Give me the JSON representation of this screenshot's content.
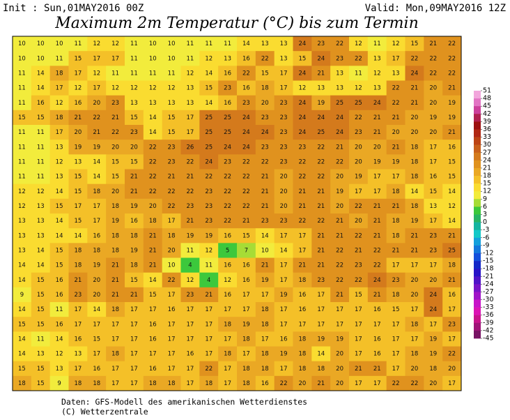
{
  "header": {
    "init": "Init : Sun,01MAY2016 00Z",
    "valid": "Valid: Mon,09MAY2016 12Z",
    "title": "Maximum 2m Temperatur (°C) bis zum Termin"
  },
  "footer": {
    "line1": "Daten: GFS-Modell des amerikanischen Wetterdienstes",
    "line2": "(C) Wetterzentrale"
  },
  "colorbar": {
    "levels": [
      51,
      48,
      45,
      42,
      39,
      36,
      33,
      30,
      27,
      24,
      21,
      18,
      15,
      12,
      9,
      6,
      3,
      0,
      -3,
      -6,
      -9,
      -12,
      -15,
      -18,
      -21,
      -24,
      -27,
      -30,
      -33,
      -36,
      -39,
      -42,
      -45
    ],
    "colors": [
      "#f2a6dc",
      "#e274c4",
      "#cc409c",
      "#b02050",
      "#9c1010",
      "#b02814",
      "#bc4414",
      "#c8601a",
      "#d47a1c",
      "#e0921e",
      "#eaa824",
      "#f4c028",
      "#fadc30",
      "#f2ec3c",
      "#a6dc36",
      "#3cc83c",
      "#28b464",
      "#14b4a0",
      "#14c8c8",
      "#14a0dc",
      "#1478dc",
      "#1450dc",
      "#1428c8",
      "#2814c8",
      "#5014c8",
      "#7814c8",
      "#a014c8",
      "#c814c8",
      "#dc14b4",
      "#c8148c",
      "#a01478",
      "#781464"
    ]
  },
  "grid": {
    "rows": [
      [
        10,
        10,
        10,
        11,
        12,
        12,
        11,
        10,
        10,
        11,
        11,
        11,
        14,
        13,
        13,
        24,
        23,
        22,
        12,
        11,
        12,
        15,
        21,
        22
      ],
      [
        10,
        10,
        11,
        15,
        17,
        17,
        11,
        10,
        10,
        11,
        12,
        13,
        16,
        22,
        13,
        15,
        24,
        23,
        22,
        13,
        17,
        22,
        22,
        22
      ],
      [
        11,
        14,
        18,
        17,
        12,
        11,
        11,
        11,
        11,
        12,
        14,
        16,
        22,
        15,
        17,
        24,
        21,
        13,
        11,
        12,
        13,
        24,
        22,
        22
      ],
      [
        11,
        14,
        17,
        12,
        17,
        12,
        12,
        12,
        12,
        13,
        15,
        23,
        16,
        18,
        17,
        12,
        13,
        13,
        12,
        13,
        22,
        21,
        20,
        21
      ],
      [
        11,
        16,
        12,
        16,
        20,
        23,
        13,
        13,
        13,
        13,
        14,
        16,
        23,
        20,
        23,
        24,
        19,
        25,
        25,
        24,
        22,
        21,
        20,
        19
      ],
      [
        15,
        15,
        18,
        21,
        22,
        21,
        15,
        14,
        15,
        17,
        25,
        25,
        24,
        23,
        23,
        24,
        24,
        24,
        22,
        21,
        21,
        20,
        19,
        19
      ],
      [
        11,
        11,
        17,
        20,
        21,
        22,
        23,
        14,
        15,
        17,
        25,
        25,
        24,
        24,
        23,
        24,
        25,
        24,
        23,
        21,
        20,
        20,
        20,
        21
      ],
      [
        11,
        11,
        13,
        19,
        19,
        20,
        20,
        22,
        23,
        26,
        25,
        24,
        24,
        23,
        23,
        23,
        22,
        21,
        20,
        20,
        21,
        18,
        17,
        16
      ],
      [
        11,
        11,
        12,
        13,
        14,
        15,
        15,
        22,
        23,
        22,
        24,
        23,
        22,
        22,
        23,
        22,
        22,
        22,
        20,
        19,
        19,
        18,
        17,
        15
      ],
      [
        11,
        11,
        13,
        15,
        14,
        15,
        21,
        22,
        21,
        21,
        22,
        22,
        22,
        21,
        20,
        22,
        22,
        20,
        19,
        17,
        17,
        18,
        16,
        15
      ],
      [
        12,
        12,
        14,
        15,
        18,
        20,
        21,
        22,
        22,
        22,
        23,
        22,
        22,
        21,
        20,
        21,
        21,
        19,
        17,
        17,
        18,
        14,
        15,
        14
      ],
      [
        12,
        13,
        15,
        17,
        17,
        18,
        19,
        20,
        22,
        23,
        23,
        22,
        22,
        21,
        20,
        21,
        21,
        20,
        22,
        21,
        21,
        18,
        13,
        12
      ],
      [
        13,
        13,
        14,
        15,
        17,
        19,
        16,
        18,
        17,
        21,
        23,
        22,
        21,
        23,
        23,
        22,
        22,
        21,
        20,
        21,
        18,
        19,
        17,
        14
      ],
      [
        13,
        13,
        14,
        14,
        16,
        18,
        18,
        21,
        18,
        19,
        19,
        16,
        15,
        14,
        17,
        17,
        21,
        21,
        22,
        21,
        18,
        21,
        23,
        21
      ],
      [
        13,
        14,
        15,
        18,
        18,
        18,
        19,
        21,
        20,
        11,
        12,
        5,
        7,
        10,
        14,
        17,
        21,
        22,
        21,
        22,
        21,
        21,
        23,
        25
      ],
      [
        14,
        14,
        15,
        18,
        19,
        21,
        18,
        21,
        10,
        4,
        11,
        16,
        16,
        21,
        17,
        21,
        21,
        22,
        23,
        22,
        17,
        17,
        17,
        18
      ],
      [
        14,
        15,
        16,
        21,
        20,
        21,
        15,
        14,
        22,
        12,
        4,
        12,
        16,
        19,
        17,
        18,
        23,
        22,
        22,
        24,
        23,
        20,
        20,
        21
      ],
      [
        9,
        15,
        16,
        23,
        20,
        21,
        21,
        15,
        17,
        23,
        21,
        16,
        17,
        17,
        19,
        16,
        17,
        21,
        15,
        21,
        18,
        20,
        24,
        16
      ],
      [
        14,
        15,
        11,
        17,
        14,
        18,
        17,
        17,
        16,
        17,
        17,
        17,
        17,
        18,
        17,
        16,
        17,
        17,
        17,
        16,
        15,
        17,
        24,
        17
      ],
      [
        15,
        15,
        16,
        17,
        17,
        17,
        17,
        16,
        17,
        17,
        17,
        18,
        19,
        18,
        17,
        17,
        17,
        17,
        17,
        17,
        17,
        18,
        17,
        23
      ],
      [
        14,
        11,
        14,
        16,
        15,
        17,
        17,
        16,
        17,
        17,
        17,
        17,
        18,
        17,
        16,
        18,
        19,
        19,
        17,
        16,
        17,
        17,
        19,
        17
      ],
      [
        14,
        13,
        12,
        13,
        17,
        18,
        17,
        17,
        17,
        16,
        17,
        18,
        17,
        18,
        19,
        18,
        14,
        20,
        17,
        16,
        17,
        18,
        19,
        22
      ],
      [
        15,
        15,
        13,
        17,
        16,
        17,
        17,
        16,
        17,
        17,
        22,
        17,
        18,
        18,
        17,
        18,
        18,
        20,
        21,
        21,
        17,
        20,
        18,
        20
      ],
      [
        18,
        15,
        9,
        18,
        18,
        17,
        17,
        18,
        18,
        17,
        18,
        17,
        18,
        16,
        22,
        20,
        21,
        20,
        17,
        17,
        22,
        22,
        20,
        17
      ]
    ]
  }
}
